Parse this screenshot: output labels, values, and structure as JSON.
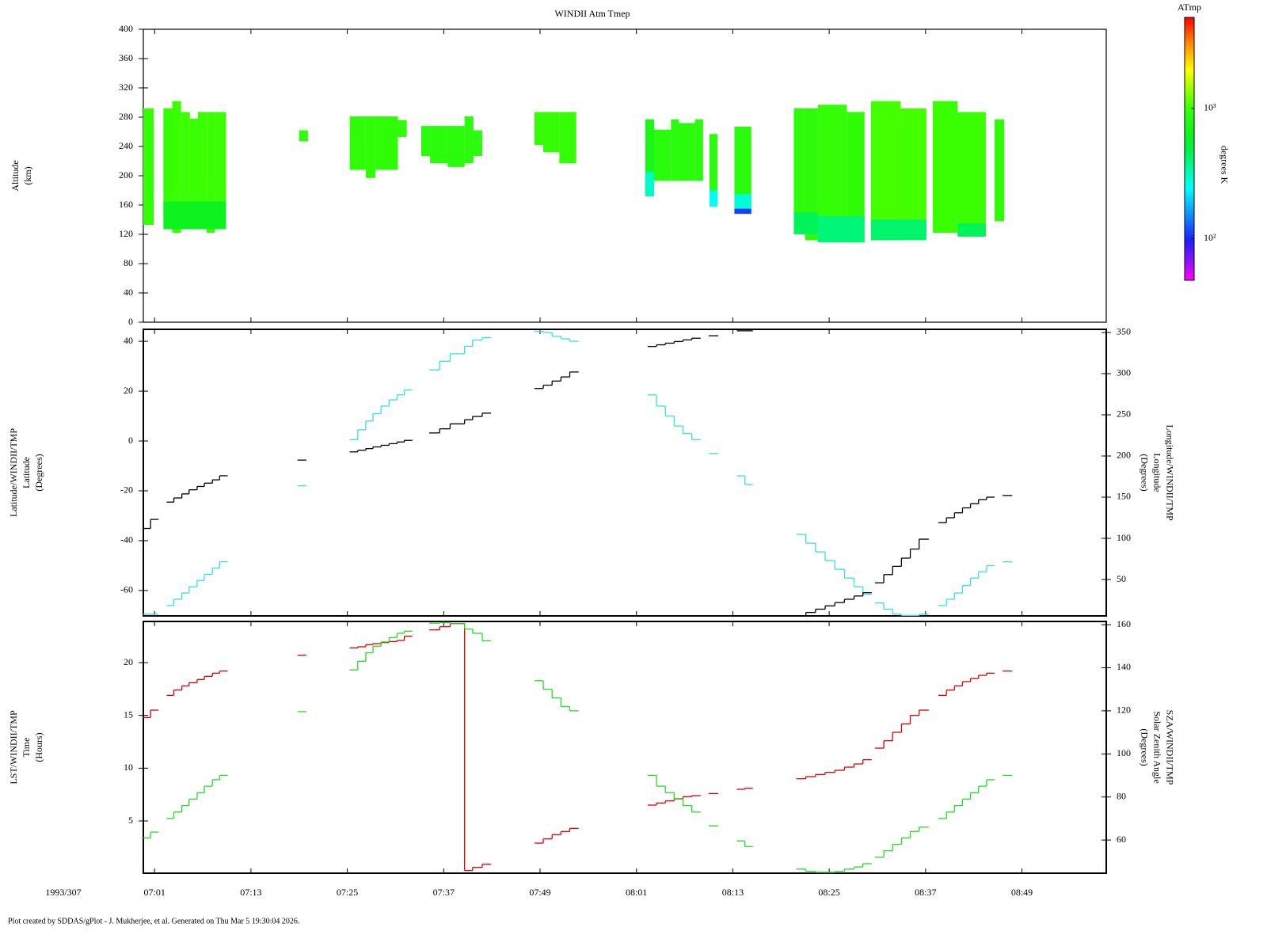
{
  "chart_data": [
    {
      "type": "heatmap",
      "title": "WINDII Atm Tmep",
      "ylabel": [
        "Altitude",
        "(km)"
      ],
      "xlim": [
        419.6,
        539.5
      ],
      "xticks": [
        {
          "value": 421,
          "label": "07:01"
        },
        {
          "value": 433,
          "label": "07:13"
        },
        {
          "value": 445,
          "label": "07:25"
        },
        {
          "value": 457,
          "label": "07:37"
        },
        {
          "value": 469,
          "label": "07:49"
        },
        {
          "value": 481,
          "label": "08:01"
        },
        {
          "value": 493,
          "label": "08:13"
        },
        {
          "value": 505,
          "label": "08:25"
        },
        {
          "value": 517,
          "label": "08:37"
        },
        {
          "value": 529,
          "label": "08:49"
        }
      ],
      "ylim": [
        0,
        400
      ],
      "yticks": [
        0,
        40,
        80,
        120,
        160,
        200,
        240,
        280,
        320,
        360,
        400
      ],
      "cells": [
        [
          419.6,
          420.9,
          133,
          292,
          950
        ],
        [
          422.1,
          423.2,
          143,
          292,
          950
        ],
        [
          423.2,
          424.3,
          122,
          302,
          1000
        ],
        [
          424.3,
          425.4,
          127,
          287,
          1000
        ],
        [
          425.4,
          426.4,
          127,
          278,
          1000
        ],
        [
          426.4,
          427.5,
          127,
          287,
          1000
        ],
        [
          427.5,
          428.5,
          122,
          287,
          1000
        ],
        [
          428.5,
          429.9,
          143,
          287,
          1000
        ],
        [
          422.1,
          429.9,
          127,
          165,
          620
        ],
        [
          439.0,
          440.1,
          247,
          262,
          900
        ],
        [
          445.3,
          447.3,
          208,
          281,
          900
        ],
        [
          447.3,
          448.5,
          197,
          281,
          900
        ],
        [
          448.5,
          451.3,
          208,
          281,
          900
        ],
        [
          451.3,
          452.4,
          253,
          276,
          900
        ],
        [
          454.2,
          455.3,
          227,
          268,
          850
        ],
        [
          455.3,
          457.5,
          217,
          268,
          850
        ],
        [
          457.5,
          459.6,
          212,
          268,
          850
        ],
        [
          459.6,
          460.7,
          217,
          281,
          850
        ],
        [
          460.7,
          461.8,
          227,
          262,
          850
        ],
        [
          468.3,
          469.4,
          242,
          287,
          950
        ],
        [
          469.4,
          471.4,
          232,
          287,
          950
        ],
        [
          471.4,
          473.5,
          217,
          287,
          950
        ],
        [
          482.1,
          483.2,
          172,
          277,
          700
        ],
        [
          482.1,
          483.2,
          172,
          205,
          300
        ],
        [
          483.2,
          485.3,
          193,
          263,
          850
        ],
        [
          485.3,
          486.3,
          193,
          277,
          850
        ],
        [
          486.3,
          488.3,
          193,
          272,
          850
        ],
        [
          488.3,
          489.3,
          193,
          277,
          850
        ],
        [
          490.1,
          491.1,
          158,
          257,
          850
        ],
        [
          490.1,
          491.1,
          158,
          180,
          250
        ],
        [
          493.2,
          495.3,
          148,
          267,
          850
        ],
        [
          493.2,
          495.3,
          148,
          175,
          280
        ],
        [
          493.2,
          495.3,
          148,
          155,
          110
        ],
        [
          500.6,
          502.0,
          128,
          292,
          880
        ],
        [
          502.0,
          503.6,
          112,
          292,
          880
        ],
        [
          503.6,
          507.2,
          112,
          297,
          950
        ],
        [
          507.2,
          509.4,
          109,
          287,
          900
        ],
        [
          510.2,
          513.9,
          112,
          302,
          1050
        ],
        [
          513.9,
          517.1,
          117,
          292,
          1050
        ],
        [
          517.9,
          521.0,
          122,
          302,
          1000
        ],
        [
          521.0,
          524.5,
          117,
          287,
          1000
        ],
        [
          525.6,
          526.8,
          138,
          277,
          900
        ],
        [
          500.6,
          503.6,
          120,
          150,
          450
        ],
        [
          503.6,
          509.4,
          109,
          145,
          400
        ],
        [
          510.2,
          517.1,
          112,
          140,
          420
        ],
        [
          521.0,
          524.5,
          117,
          135,
          450
        ]
      ],
      "colorbar": {
        "title": "ATmp",
        "label": "degrees K",
        "log": true,
        "clim": [
          48,
          4970
        ],
        "ticks": [
          {
            "value": 100,
            "label": "10²"
          },
          {
            "value": 1000,
            "label": "10³"
          }
        ]
      }
    },
    {
      "type": "step",
      "ylabel": [
        "Latitude/WINDII/TMP",
        "Latitude",
        "(Degrees)"
      ],
      "y2label": [
        "Longitude/WINDII/TMP",
        "Longitude",
        "(Degrees)"
      ],
      "ylim": [
        -70.2,
        44.8
      ],
      "yticks": [
        -60,
        -40,
        -20,
        0,
        20,
        40
      ],
      "y2lim": [
        5.8,
        353.8
      ],
      "y2ticks": [
        50,
        100,
        150,
        200,
        250,
        300,
        350
      ],
      "x": [
        419.6,
        420.5,
        421.5,
        422.5,
        423.4,
        424.4,
        425.3,
        426.3,
        427.2,
        428.2,
        429.1,
        430.1,
        438.8,
        439.9,
        445.3,
        446.3,
        447.3,
        448.2,
        449.2,
        450.2,
        451.2,
        452.1,
        453.1,
        455.2,
        456.5,
        457.8,
        459.6,
        460.6,
        461.8,
        462.9,
        468.3,
        469.4,
        470.5,
        471.6,
        472.7,
        473.8,
        482.4,
        483.5,
        484.6,
        485.7,
        486.8,
        487.9,
        489.0,
        490.0,
        491.2,
        493.5,
        494.5,
        495.5,
        500.9,
        502.1,
        503.3,
        504.5,
        505.7,
        506.9,
        508.1,
        509.2,
        510.3,
        510.7,
        511.8,
        512.9,
        514.0,
        515.1,
        516.2,
        517.4,
        518.6,
        519.6,
        520.6,
        521.6,
        522.6,
        523.6,
        524.6,
        525.6,
        526.6,
        527.8
      ],
      "series": [
        {
          "color": "#33e0e8",
          "axis": "y",
          "values": [
            -69.5,
            -69.5,
            null,
            -66,
            -63.5,
            -61,
            -58.5,
            -56,
            -53.5,
            -51,
            -48.5,
            null,
            -18,
            null,
            0.5,
            4.5,
            8,
            11,
            14,
            16.5,
            18.5,
            20.5,
            null,
            28.5,
            32,
            35,
            38,
            40.5,
            41.5,
            null,
            44,
            43.5,
            42,
            41,
            40,
            null,
            18.5,
            14,
            10,
            6,
            3,
            0.5,
            null,
            -5,
            null,
            -14,
            -17.5,
            null,
            -37.5,
            -41,
            -44.5,
            -48,
            -51.5,
            -55,
            -58.5,
            -61.5,
            null,
            -65,
            -67.5,
            -69.5,
            -70,
            -70,
            -69.5,
            null,
            -66,
            -63.5,
            -61,
            -58,
            -55,
            -52.5,
            -50,
            null,
            -48.5,
            null
          ]
        },
        {
          "color": "#000000",
          "axis": "y2",
          "values": [
            112,
            123,
            null,
            144,
            149,
            154,
            159,
            163,
            167,
            171,
            176,
            null,
            195,
            null,
            205,
            207,
            209,
            211,
            213,
            215,
            217,
            219,
            null,
            228,
            233,
            239,
            244,
            248,
            252,
            null,
            282,
            286,
            291,
            296,
            302,
            null,
            333,
            335,
            337,
            339,
            341,
            343,
            null,
            346,
            null,
            352,
            352,
            null,
            6,
            10,
            14,
            18,
            22,
            26,
            30,
            34,
            null,
            46,
            56,
            66,
            76,
            87,
            99,
            null,
            119,
            125,
            131,
            137,
            142,
            147,
            150,
            null,
            152,
            null
          ]
        }
      ]
    },
    {
      "type": "step",
      "ylabel": [
        "LST/WINDII/TMP",
        "Time",
        "(Hours)"
      ],
      "y2label": [
        "SZA/WINDII/TMP",
        "Solar Zenith Angle",
        "(Degrees)"
      ],
      "ylim": [
        0.05,
        23.9
      ],
      "yticks": [
        5,
        10,
        15,
        20
      ],
      "y2lim": [
        44.6,
        161.5
      ],
      "y2ticks": [
        60,
        80,
        100,
        120,
        140,
        160
      ],
      "x": [
        419.6,
        420.5,
        421.5,
        422.5,
        423.4,
        424.4,
        425.3,
        426.3,
        427.2,
        428.2,
        429.1,
        430.1,
        438.8,
        439.9,
        445.3,
        446.3,
        447.3,
        448.2,
        449.2,
        450.2,
        451.2,
        452.1,
        453.1,
        455.2,
        456.5,
        457.8,
        459.6,
        460.6,
        461.8,
        462.9,
        468.3,
        469.4,
        470.5,
        471.6,
        472.7,
        473.8,
        482.4,
        483.5,
        484.6,
        485.7,
        486.8,
        487.9,
        489.0,
        490.0,
        491.2,
        493.5,
        494.5,
        495.5,
        500.9,
        502.1,
        503.3,
        504.5,
        505.7,
        506.9,
        508.1,
        509.2,
        510.3,
        510.7,
        511.8,
        512.9,
        514.0,
        515.1,
        516.2,
        517.4,
        518.6,
        519.6,
        520.6,
        521.6,
        522.6,
        523.6,
        524.6,
        525.6,
        526.6,
        527.8
      ],
      "series": [
        {
          "color": "#e00000",
          "axis": "y",
          "values": [
            14.8,
            15.5,
            null,
            16.9,
            17.4,
            17.8,
            18.1,
            18.4,
            18.7,
            19,
            19.2,
            null,
            20.7,
            null,
            21.4,
            21.5,
            21.7,
            21.8,
            21.9,
            22,
            22.1,
            22.5,
            null,
            23.1,
            23.4,
            23.7,
            0.3,
            0.6,
            0.9,
            null,
            2.9,
            3.3,
            3.7,
            4,
            4.3,
            null,
            6.5,
            6.7,
            6.9,
            7.1,
            7.3,
            7.4,
            null,
            7.6,
            null,
            8,
            8.1,
            null,
            9,
            9.2,
            9.4,
            9.6,
            9.8,
            10.1,
            10.4,
            10.8,
            null,
            11.9,
            12.6,
            13.4,
            14.2,
            15,
            15.5,
            null,
            16.9,
            17.4,
            17.8,
            18.2,
            18.5,
            18.8,
            19,
            null,
            19.2,
            null
          ]
        },
        {
          "color": "#22dd22",
          "axis": "y2",
          "values": [
            61,
            63.7,
            null,
            70,
            73,
            76,
            79,
            82,
            85,
            88,
            90,
            null,
            119.6,
            null,
            139,
            143,
            147,
            150,
            152,
            154,
            156,
            157,
            null,
            160.7,
            161,
            160.5,
            158,
            156,
            152.5,
            null,
            134,
            130,
            126,
            122,
            120,
            null,
            90,
            85,
            82,
            79,
            76,
            73,
            null,
            66.6,
            null,
            59.6,
            57,
            null,
            46.5,
            45.5,
            45,
            45,
            45.5,
            46.5,
            47.5,
            49,
            null,
            52,
            55,
            58,
            61,
            64,
            66,
            null,
            70,
            73,
            76,
            79,
            82,
            85,
            88,
            null,
            90,
            null
          ]
        }
      ]
    }
  ],
  "date_label": "1993/307",
  "footer": "Plot created by SDDAS/gPlot - J. Mukherjee, et al.  Generated on Thu Mar 5 19:30:04 2026."
}
